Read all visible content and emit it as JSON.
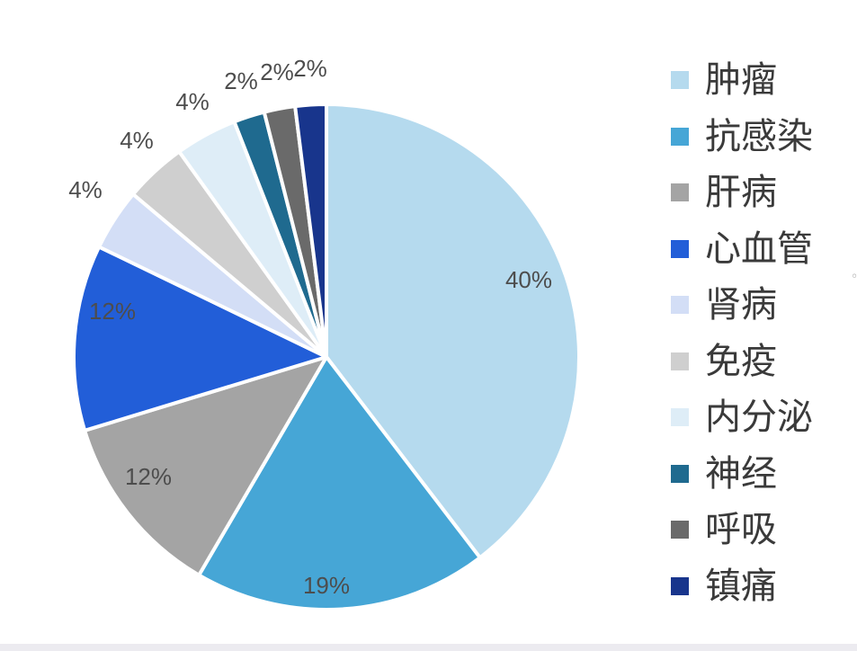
{
  "chart_data": {
    "type": "pie",
    "categories": [
      "肿瘤",
      "抗感染",
      "肝病",
      "心血管",
      "肾病",
      "免疫",
      "内分泌",
      "神经",
      "呼吸",
      "镇痛"
    ],
    "values": [
      40,
      19,
      12,
      12,
      4,
      4,
      4,
      2,
      2,
      2
    ],
    "data_labels": [
      "40%",
      "19%",
      "12%",
      "12%",
      "4%",
      "4%",
      "4%",
      "2%",
      "2%",
      "2%"
    ],
    "colors": [
      "#b5daee",
      "#46a6d6",
      "#a4a4a4",
      "#225ed8",
      "#d3def6",
      "#cfcfcf",
      "#deedf7",
      "#1f6a8f",
      "#6a6a6a",
      "#18358c"
    ],
    "legend_position": "right",
    "label_color": "#4d4d4d"
  },
  "edge_mark": "◦"
}
